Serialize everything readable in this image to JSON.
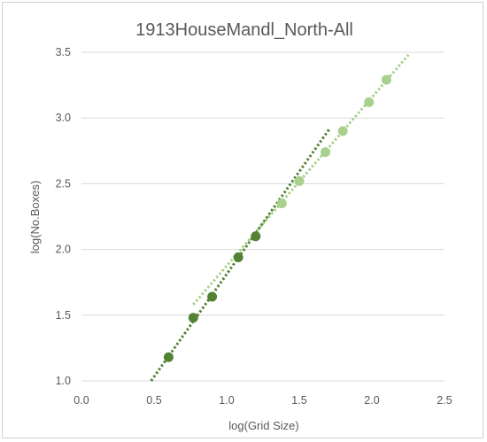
{
  "chart_data": {
    "type": "scatter",
    "title": "1913HouseMandl_North-All",
    "xlabel": "log(Grid Size)",
    "ylabel": "log(No.Boxes)",
    "xlim": [
      0.0,
      2.5
    ],
    "ylim": [
      1.0,
      3.5
    ],
    "xticks": [
      "0.0",
      "0.5",
      "1.0",
      "1.5",
      "2.0",
      "2.5"
    ],
    "yticks": [
      "1.0",
      "1.5",
      "2.0",
      "2.5",
      "3.0",
      "3.5"
    ],
    "grid": "horizontal",
    "series": [
      {
        "color": "#548235",
        "points": [
          [
            0.6,
            1.18
          ],
          [
            0.77,
            1.48
          ],
          [
            0.9,
            1.64
          ],
          [
            1.08,
            1.94
          ],
          [
            1.2,
            2.1
          ]
        ],
        "trendline": [
          [
            0.48,
            1.0
          ],
          [
            1.71,
            2.92
          ]
        ]
      },
      {
        "color": "#a9d18e",
        "points": [
          [
            1.38,
            2.35
          ],
          [
            1.5,
            2.52
          ],
          [
            1.68,
            2.74
          ],
          [
            1.8,
            2.9
          ],
          [
            1.98,
            3.12
          ],
          [
            2.1,
            3.29
          ]
        ],
        "trendline": [
          [
            0.77,
            1.58
          ],
          [
            2.26,
            3.49
          ]
        ]
      }
    ]
  }
}
